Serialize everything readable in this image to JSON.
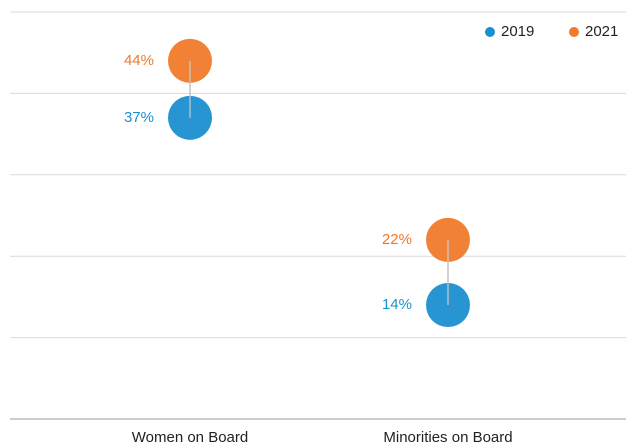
{
  "chart_data": {
    "type": "dot",
    "categories": [
      "Women on Board",
      "Minorities on Board"
    ],
    "series": [
      {
        "name": "2019",
        "color": "#1a8fd0",
        "values": [
          37,
          14
        ],
        "value_labels": [
          "37%",
          "14%"
        ]
      },
      {
        "name": "2021",
        "color": "#f07a2a",
        "values": [
          44,
          22
        ],
        "value_labels": [
          "44%",
          "22%"
        ]
      }
    ],
    "ylim": [
      0,
      50
    ],
    "yticks": [
      0,
      10,
      20,
      30,
      40,
      50
    ],
    "grid": true,
    "legend": "top-right"
  }
}
